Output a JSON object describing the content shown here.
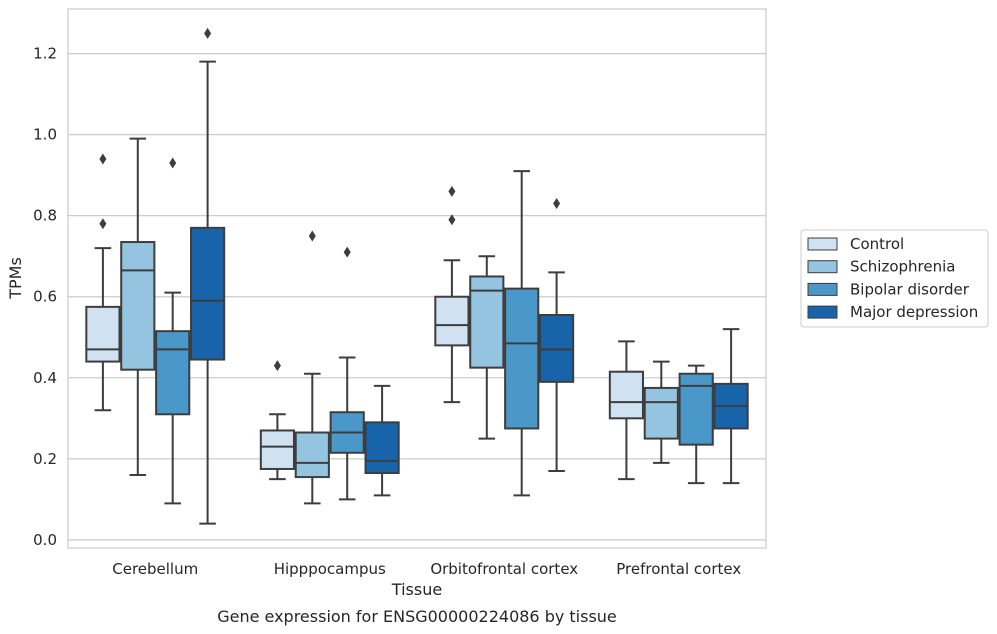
{
  "chart_data": {
    "type": "box",
    "xlabel": "Tissue",
    "ylabel": "TPMs",
    "caption": "Gene expression for ENSG00000224086 by tissue",
    "ylim": [
      -0.02,
      1.31
    ],
    "yticks": [
      "0.0",
      "0.2",
      "0.4",
      "0.6",
      "0.8",
      "1.0",
      "1.2"
    ],
    "ytick_values": [
      0,
      0.2,
      0.4,
      0.6,
      0.8,
      1.0,
      1.2
    ],
    "grid": "horizontal",
    "legend_position": "right",
    "categories": [
      "Cerebellum",
      "Hipppocampus",
      "Orbitofrontal cortex",
      "Prefrontal cortex"
    ],
    "series": [
      {
        "name": "Control",
        "color": "#d0e1f2",
        "boxes": [
          {
            "whisker_low": 0.32,
            "q1": 0.44,
            "median": 0.47,
            "q3": 0.575,
            "whisker_high": 0.72,
            "outliers": [
              0.78,
              0.94
            ]
          },
          {
            "whisker_low": 0.15,
            "q1": 0.175,
            "median": 0.23,
            "q3": 0.27,
            "whisker_high": 0.31,
            "outliers": [
              0.43
            ]
          },
          {
            "whisker_low": 0.34,
            "q1": 0.48,
            "median": 0.53,
            "q3": 0.6,
            "whisker_high": 0.69,
            "outliers": [
              0.79,
              0.86
            ]
          },
          {
            "whisker_low": 0.15,
            "q1": 0.3,
            "median": 0.34,
            "q3": 0.415,
            "whisker_high": 0.49,
            "outliers": []
          }
        ]
      },
      {
        "name": "Schizophrenia",
        "color": "#94c4df",
        "boxes": [
          {
            "whisker_low": 0.16,
            "q1": 0.42,
            "median": 0.665,
            "q3": 0.735,
            "whisker_high": 0.99,
            "outliers": []
          },
          {
            "whisker_low": 0.09,
            "q1": 0.155,
            "median": 0.19,
            "q3": 0.265,
            "whisker_high": 0.41,
            "outliers": [
              0.75
            ]
          },
          {
            "whisker_low": 0.25,
            "q1": 0.425,
            "median": 0.615,
            "q3": 0.65,
            "whisker_high": 0.7,
            "outliers": []
          },
          {
            "whisker_low": 0.19,
            "q1": 0.25,
            "median": 0.34,
            "q3": 0.375,
            "whisker_high": 0.44,
            "outliers": []
          }
        ]
      },
      {
        "name": "Bipolar disorder",
        "color": "#4a98c9",
        "boxes": [
          {
            "whisker_low": 0.09,
            "q1": 0.31,
            "median": 0.47,
            "q3": 0.515,
            "whisker_high": 0.61,
            "outliers": [
              0.93
            ]
          },
          {
            "whisker_low": 0.1,
            "q1": 0.215,
            "median": 0.265,
            "q3": 0.315,
            "whisker_high": 0.45,
            "outliers": [
              0.71
            ]
          },
          {
            "whisker_low": 0.11,
            "q1": 0.275,
            "median": 0.485,
            "q3": 0.62,
            "whisker_high": 0.91,
            "outliers": []
          },
          {
            "whisker_low": 0.14,
            "q1": 0.235,
            "median": 0.38,
            "q3": 0.41,
            "whisker_high": 0.43,
            "outliers": []
          }
        ]
      },
      {
        "name": "Major depression",
        "color": "#1764ab",
        "boxes": [
          {
            "whisker_low": 0.04,
            "q1": 0.445,
            "median": 0.59,
            "q3": 0.77,
            "whisker_high": 1.18,
            "outliers": [
              1.25
            ]
          },
          {
            "whisker_low": 0.11,
            "q1": 0.165,
            "median": 0.195,
            "q3": 0.29,
            "whisker_high": 0.38,
            "outliers": []
          },
          {
            "whisker_low": 0.17,
            "q1": 0.39,
            "median": 0.47,
            "q3": 0.555,
            "whisker_high": 0.66,
            "outliers": [
              0.83
            ]
          },
          {
            "whisker_low": 0.14,
            "q1": 0.275,
            "median": 0.33,
            "q3": 0.385,
            "whisker_high": 0.52,
            "outliers": []
          }
        ]
      }
    ]
  }
}
